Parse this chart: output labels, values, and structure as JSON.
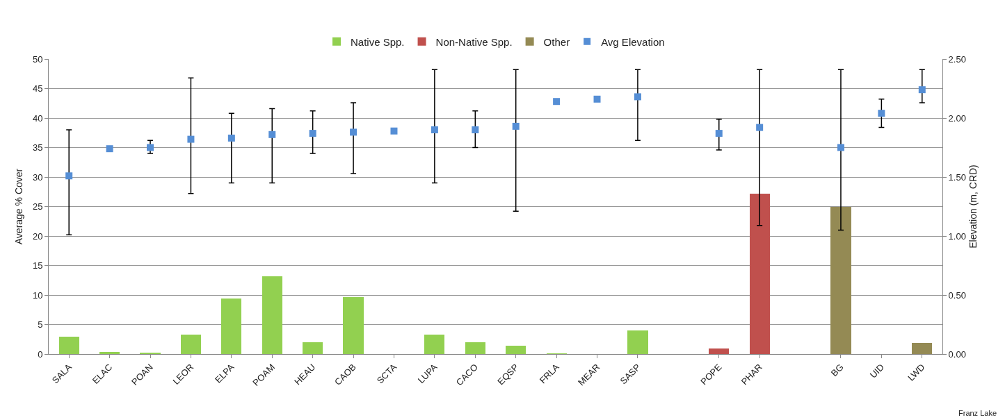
{
  "chart_data": {
    "type": "bar",
    "stacked": true,
    "ylabel": "Average % Cover",
    "y2label": "Elevation (m, CRD)",
    "categories": [
      "SALA",
      "ELAC",
      "POAN",
      "LEOR",
      "ELPA",
      "POAM",
      "HEAU",
      "CAOB",
      "SCTA",
      "LUPA",
      "CACO",
      "EQSP",
      "FRLA",
      "MEAR",
      "SASP",
      null,
      "POPE",
      "PHAR",
      null,
      "BG",
      "UID",
      "LWD"
    ],
    "series": [
      {
        "name": "Native Spp.",
        "color": "#92d050",
        "values": [
          3.0,
          0.3,
          0.2,
          3.3,
          9.4,
          13.2,
          2.0,
          9.6,
          0,
          3.3,
          2.0,
          1.4,
          0.1,
          0,
          4.0,
          null,
          null,
          null,
          null,
          null,
          null,
          null
        ]
      },
      {
        "name": "Non-Native Spp.",
        "color": "#c0504d",
        "values": [
          null,
          null,
          null,
          null,
          null,
          null,
          null,
          null,
          null,
          null,
          null,
          null,
          null,
          null,
          null,
          null,
          0.9,
          27.2,
          null,
          null,
          null,
          null
        ]
      },
      {
        "name": "Other",
        "color": "#948a54",
        "values": [
          null,
          null,
          null,
          null,
          null,
          null,
          null,
          null,
          null,
          null,
          null,
          null,
          null,
          null,
          null,
          null,
          null,
          null,
          null,
          25.0,
          0,
          1.9
        ]
      },
      {
        "name": "Avg Elevation",
        "type": "scatter",
        "axis": "y2",
        "marker": "square",
        "color": "#558ed5",
        "values": [
          1.51,
          1.74,
          1.75,
          1.82,
          1.83,
          1.86,
          1.87,
          1.88,
          1.89,
          1.9,
          1.9,
          1.93,
          2.14,
          2.16,
          2.18,
          null,
          1.87,
          1.92,
          null,
          1.75,
          2.04,
          2.24
        ],
        "errors": [
          [
            1.01,
            1.9
          ],
          null,
          [
            1.7,
            1.81
          ],
          [
            1.36,
            2.34
          ],
          [
            1.45,
            2.04
          ],
          [
            1.45,
            2.08
          ],
          [
            1.7,
            2.06
          ],
          [
            1.53,
            2.13
          ],
          null,
          [
            1.45,
            2.41
          ],
          [
            1.75,
            2.06
          ],
          [
            1.21,
            2.41
          ],
          null,
          null,
          [
            1.81,
            2.41
          ],
          null,
          [
            1.73,
            1.99
          ],
          [
            1.09,
            2.41
          ],
          null,
          [
            1.05,
            2.41
          ],
          [
            1.92,
            2.16
          ],
          [
            2.13,
            2.41
          ]
        ]
      }
    ],
    "ylim": [
      0,
      50
    ],
    "yticks": [
      0,
      5,
      10,
      15,
      20,
      25,
      30,
      35,
      40,
      45,
      50
    ],
    "y2lim": [
      0,
      2.5
    ],
    "y2ticks": [
      {
        "value": 0,
        "label": "0.00"
      },
      {
        "value": 0.5,
        "label": "0.50"
      },
      {
        "value": 1,
        "label": "1.00"
      },
      {
        "value": 1.5,
        "label": "1.50"
      },
      {
        "value": 2,
        "label": "2.00"
      },
      {
        "value": 2.5,
        "label": "2.50"
      }
    ],
    "grid": "y",
    "legend": "top",
    "annotations": [
      "Franz Lake"
    ]
  }
}
